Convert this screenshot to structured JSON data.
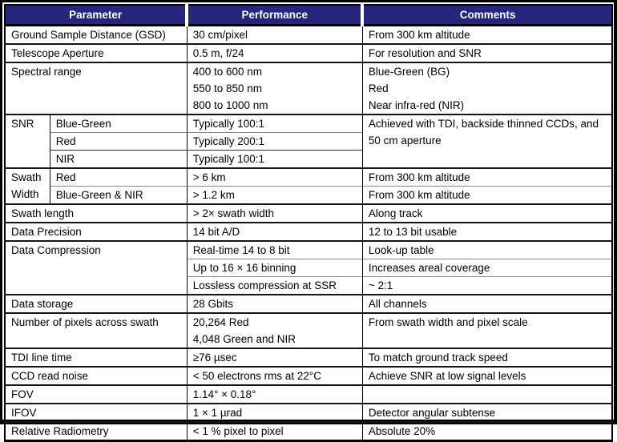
{
  "colors": {
    "header_bg": "#26267d",
    "header_text": "#ffffff",
    "grid_dark": "#161616",
    "grid_light": "#888888",
    "frame": "#000000"
  },
  "header": {
    "parameter": "Parameter",
    "performance": "Performance",
    "comments": "Comments"
  },
  "rows": {
    "gsd": {
      "parameter": "Ground Sample Distance (GSD)",
      "performance": "30 cm/pixel",
      "comments": "From 300 km altitude"
    },
    "telescope": {
      "parameter": "Telescope Aperture",
      "performance": "0.5 m, f/24",
      "comments": "For resolution and SNR"
    },
    "spectral": {
      "parameter": "Spectral range",
      "performance": [
        "400 to 600 nm",
        "550 to 850 nm",
        "800 to 1000 nm"
      ],
      "comments": [
        "Blue-Green (BG)",
        "Red",
        "Near infra-red (NIR)"
      ]
    },
    "snr": {
      "parameter": "SNR",
      "subrows": [
        {
          "band": "Blue-Green",
          "performance": "Typically 100:1"
        },
        {
          "band": "Red",
          "performance": "Typically 200:1"
        },
        {
          "band": "NIR",
          "performance": "Typically 100:1"
        }
      ],
      "comments": [
        "Achieved with TDI, backside thinned CCDs, and",
        "50 cm aperture"
      ]
    },
    "swath_width": {
      "parameter": "Swath Width",
      "subrows": [
        {
          "band": "Red",
          "performance": "> 6 km",
          "comments": "From 300 km altitude"
        },
        {
          "band": "Blue-Green & NIR",
          "performance": "> 1.2 km",
          "comments": "From 300 km altitude"
        }
      ]
    },
    "swath_length": {
      "parameter": "Swath length",
      "performance": "> 2× swath width",
      "comments": "Along track"
    },
    "data_precision": {
      "parameter": "Data Precision",
      "performance": "14 bit A/D",
      "comments": "12 to 13 bit usable"
    },
    "data_compression": {
      "parameter": "Data Compression",
      "subrows": [
        {
          "performance": "Real-time 14 to 8 bit",
          "comments": "Look-up table"
        },
        {
          "performance": "Up to 16 × 16 binning",
          "comments": "Increases areal coverage"
        },
        {
          "performance": "Lossless compression at SSR",
          "comments": "~ 2:1"
        }
      ]
    },
    "data_storage": {
      "parameter": "Data storage",
      "performance": "28 Gbits",
      "comments": "All channels"
    },
    "pixels_across_swath": {
      "parameter": "Number of pixels across swath",
      "performance": [
        "20,264 Red",
        "4,048 Green and NIR"
      ],
      "comments": "From swath width and pixel scale"
    },
    "tdi_line_time": {
      "parameter": "TDI line time",
      "performance": "≥76 µsec",
      "comments": "To match ground track speed"
    },
    "ccd_read_noise": {
      "parameter": "CCD read noise",
      "performance": "< 50 electrons rms at 22°C",
      "comments": "Achieve SNR at low signal levels"
    },
    "fov": {
      "parameter": "FOV",
      "performance": "1.14° × 0.18°",
      "comments": ""
    },
    "ifov": {
      "parameter": "IFOV",
      "performance": "1 × 1 µrad",
      "comments": "Detector angular subtense"
    },
    "relative_radiometry": {
      "parameter": "Relative Radiometry",
      "performance": "< 1 % pixel to pixel",
      "comments": "Absolute 20%"
    }
  }
}
